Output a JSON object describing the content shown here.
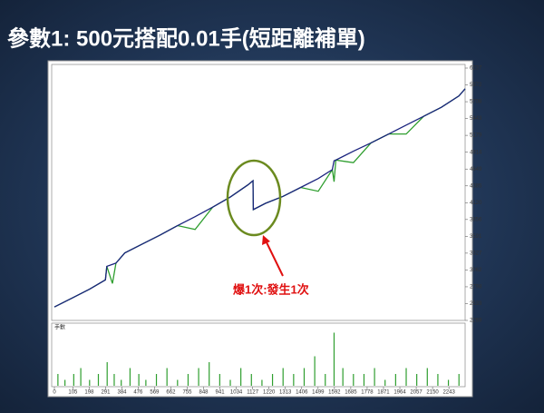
{
  "title": "參數1: 500元搭配0.01手(短距離補單)",
  "chart_data": {
    "type": "line",
    "x": [
      0,
      100,
      200,
      290,
      298,
      330,
      350,
      400,
      500,
      600,
      700,
      800,
      900,
      1000,
      1100,
      1129,
      1131,
      1200,
      1300,
      1400,
      1500,
      1580,
      1590,
      1600,
      1700,
      1800,
      1900,
      2000,
      2100,
      2200,
      2300,
      2335
    ],
    "series": [
      {
        "color": "#2e9e2e",
        "values": [
          2481,
          2620,
          2760,
          2907,
          3119,
          2850,
          3170,
          3330,
          3470,
          3610,
          3760,
          3700,
          4050,
          4210,
          4400,
          4466,
          4012,
          4110,
          4220,
          4360,
          4300,
          4640,
          4450,
          4790,
          4750,
          5060,
          5200,
          5200,
          5480,
          5620,
          5800,
          5911
        ]
      },
      {
        "color": "#1a237e",
        "values": [
          2481,
          2620,
          2760,
          2907,
          3119,
          3150,
          3170,
          3330,
          3470,
          3610,
          3760,
          3900,
          4050,
          4210,
          4400,
          4466,
          4012,
          4110,
          4220,
          4360,
          4500,
          4640,
          4780,
          4790,
          4930,
          5060,
          5200,
          5340,
          5480,
          5620,
          5800,
          5911
        ]
      }
    ],
    "xlim": [
      0,
      2335
    ],
    "xticks": [
      0,
      105,
      198,
      291,
      384,
      476,
      569,
      662,
      755,
      848,
      941,
      1034,
      1127,
      1220,
      1313,
      1406,
      1499,
      1592,
      1685,
      1778,
      1871,
      1964,
      2057,
      2150,
      2243
    ],
    "ylim": [
      2269,
      6237
    ],
    "yticks": [
      6237,
      5972,
      5708,
      5443,
      5179,
      4914,
      4649,
      4385,
      4120,
      3856,
      3591,
      3327,
      3062,
      2798,
      2533,
      2269
    ],
    "annotation": "爆1次:發生1次",
    "volume": {
      "label": "手數",
      "color": "#2e9e2e",
      "ylim": [
        0,
        10
      ],
      "x": [
        20,
        60,
        110,
        150,
        200,
        250,
        300,
        340,
        380,
        430,
        480,
        520,
        580,
        640,
        700,
        760,
        820,
        880,
        940,
        1000,
        1060,
        1120,
        1180,
        1240,
        1300,
        1360,
        1420,
        1480,
        1540,
        1590,
        1640,
        1700,
        1760,
        1820,
        1880,
        1940,
        2000,
        2060,
        2120,
        2180,
        2240,
        2300
      ],
      "values": [
        2,
        1,
        2,
        3,
        1,
        2,
        4,
        2,
        1,
        3,
        2,
        1,
        2,
        3,
        1,
        2,
        3,
        4,
        2,
        1,
        3,
        2,
        1,
        2,
        3,
        2,
        3,
        5,
        2,
        9,
        3,
        2,
        2,
        3,
        1,
        2,
        3,
        2,
        3,
        2,
        1,
        2
      ]
    }
  }
}
